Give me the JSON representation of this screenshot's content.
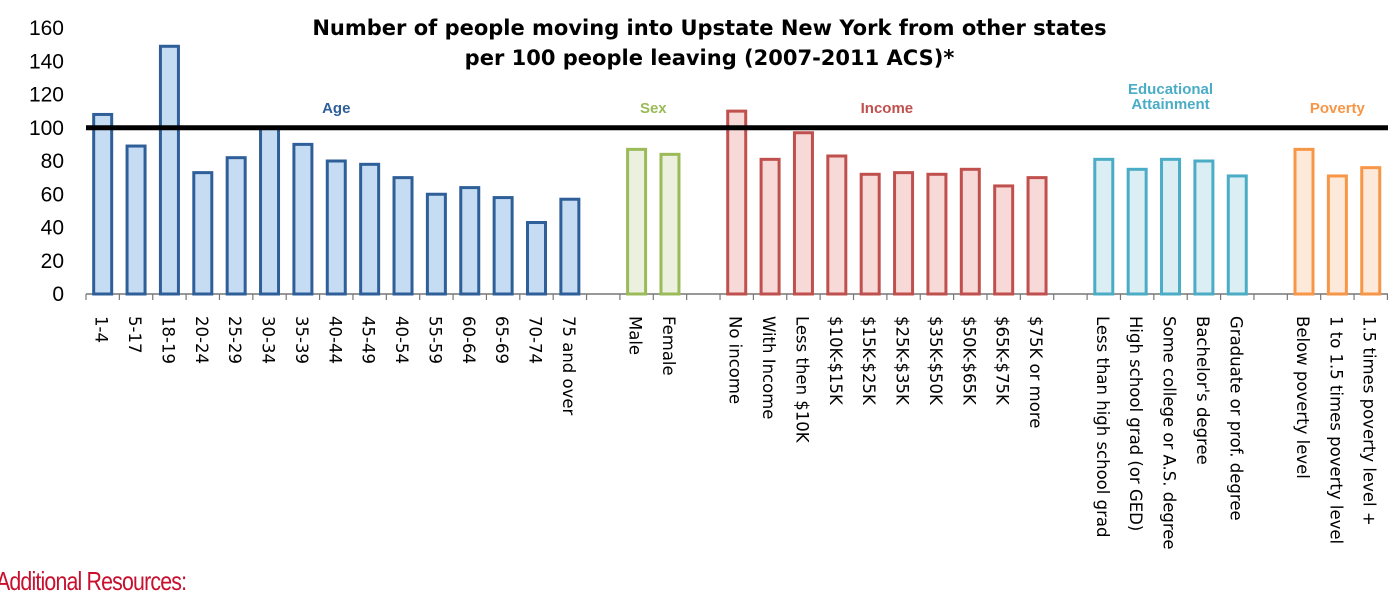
{
  "chart_data": {
    "type": "bar",
    "title_lines": [
      "Number of people moving into Upstate New York from other states",
      "per 100 people leaving (2007-2011 ACS)*"
    ],
    "ylim": [
      0,
      160
    ],
    "yticks": [
      0,
      20,
      40,
      60,
      80,
      100,
      120,
      140,
      160
    ],
    "reference_line": 100,
    "grid": false,
    "groups": [
      {
        "name": "Age",
        "color": "#2f5f98",
        "fill": "#c6dcf2",
        "label_lines": [
          "Age"
        ],
        "categories": [
          "1-4",
          "5-17",
          "18-19",
          "20-24",
          "25-29",
          "30-34",
          "35-39",
          "40-44",
          "45-49",
          "40-54",
          "55-59",
          "60-64",
          "65-69",
          "70-74",
          "75 and over"
        ],
        "values": [
          108,
          89,
          149,
          73,
          82,
          100,
          90,
          80,
          78,
          70,
          60,
          64,
          58,
          43,
          57
        ]
      },
      {
        "name": "Sex",
        "color": "#9bbb59",
        "fill": "#ebf1de",
        "label_lines": [
          "Sex"
        ],
        "categories": [
          "Male",
          "Female"
        ],
        "values": [
          87,
          84
        ]
      },
      {
        "name": "Income",
        "color": "#c0504d",
        "fill": "#f7d9d8",
        "label_lines": [
          "Income"
        ],
        "categories": [
          "No income",
          "With Income",
          "Less then $10K",
          "$10K-$15K",
          "$15K-$25K",
          "$25K-$35K",
          "$35K-$50K",
          "$50K-$65K",
          "$65K-$75K",
          "$75K or more"
        ],
        "values": [
          110,
          81,
          97,
          83,
          72,
          73,
          72,
          75,
          65,
          70
        ]
      },
      {
        "name": "Educational Attainment",
        "color": "#4bacc6",
        "fill": "#daeef3",
        "label_lines": [
          "Educational",
          "Attainment"
        ],
        "categories": [
          "Less than high school grad",
          "High school grad (or GED)",
          "Some college or A.S. degree",
          "Bachelor's degree",
          "Graduate or prof. degree"
        ],
        "values": [
          81,
          75,
          81,
          80,
          71
        ]
      },
      {
        "name": "Poverty",
        "color": "#f79646",
        "fill": "#fde9d9",
        "label_lines": [
          "Poverty"
        ],
        "categories": [
          "Below poverty level",
          "1 to 1.5 times poverty level",
          "1.5 times poverty level +"
        ],
        "values": [
          87,
          71,
          76
        ]
      }
    ]
  },
  "footer": {
    "text": "Additional Resources:"
  }
}
